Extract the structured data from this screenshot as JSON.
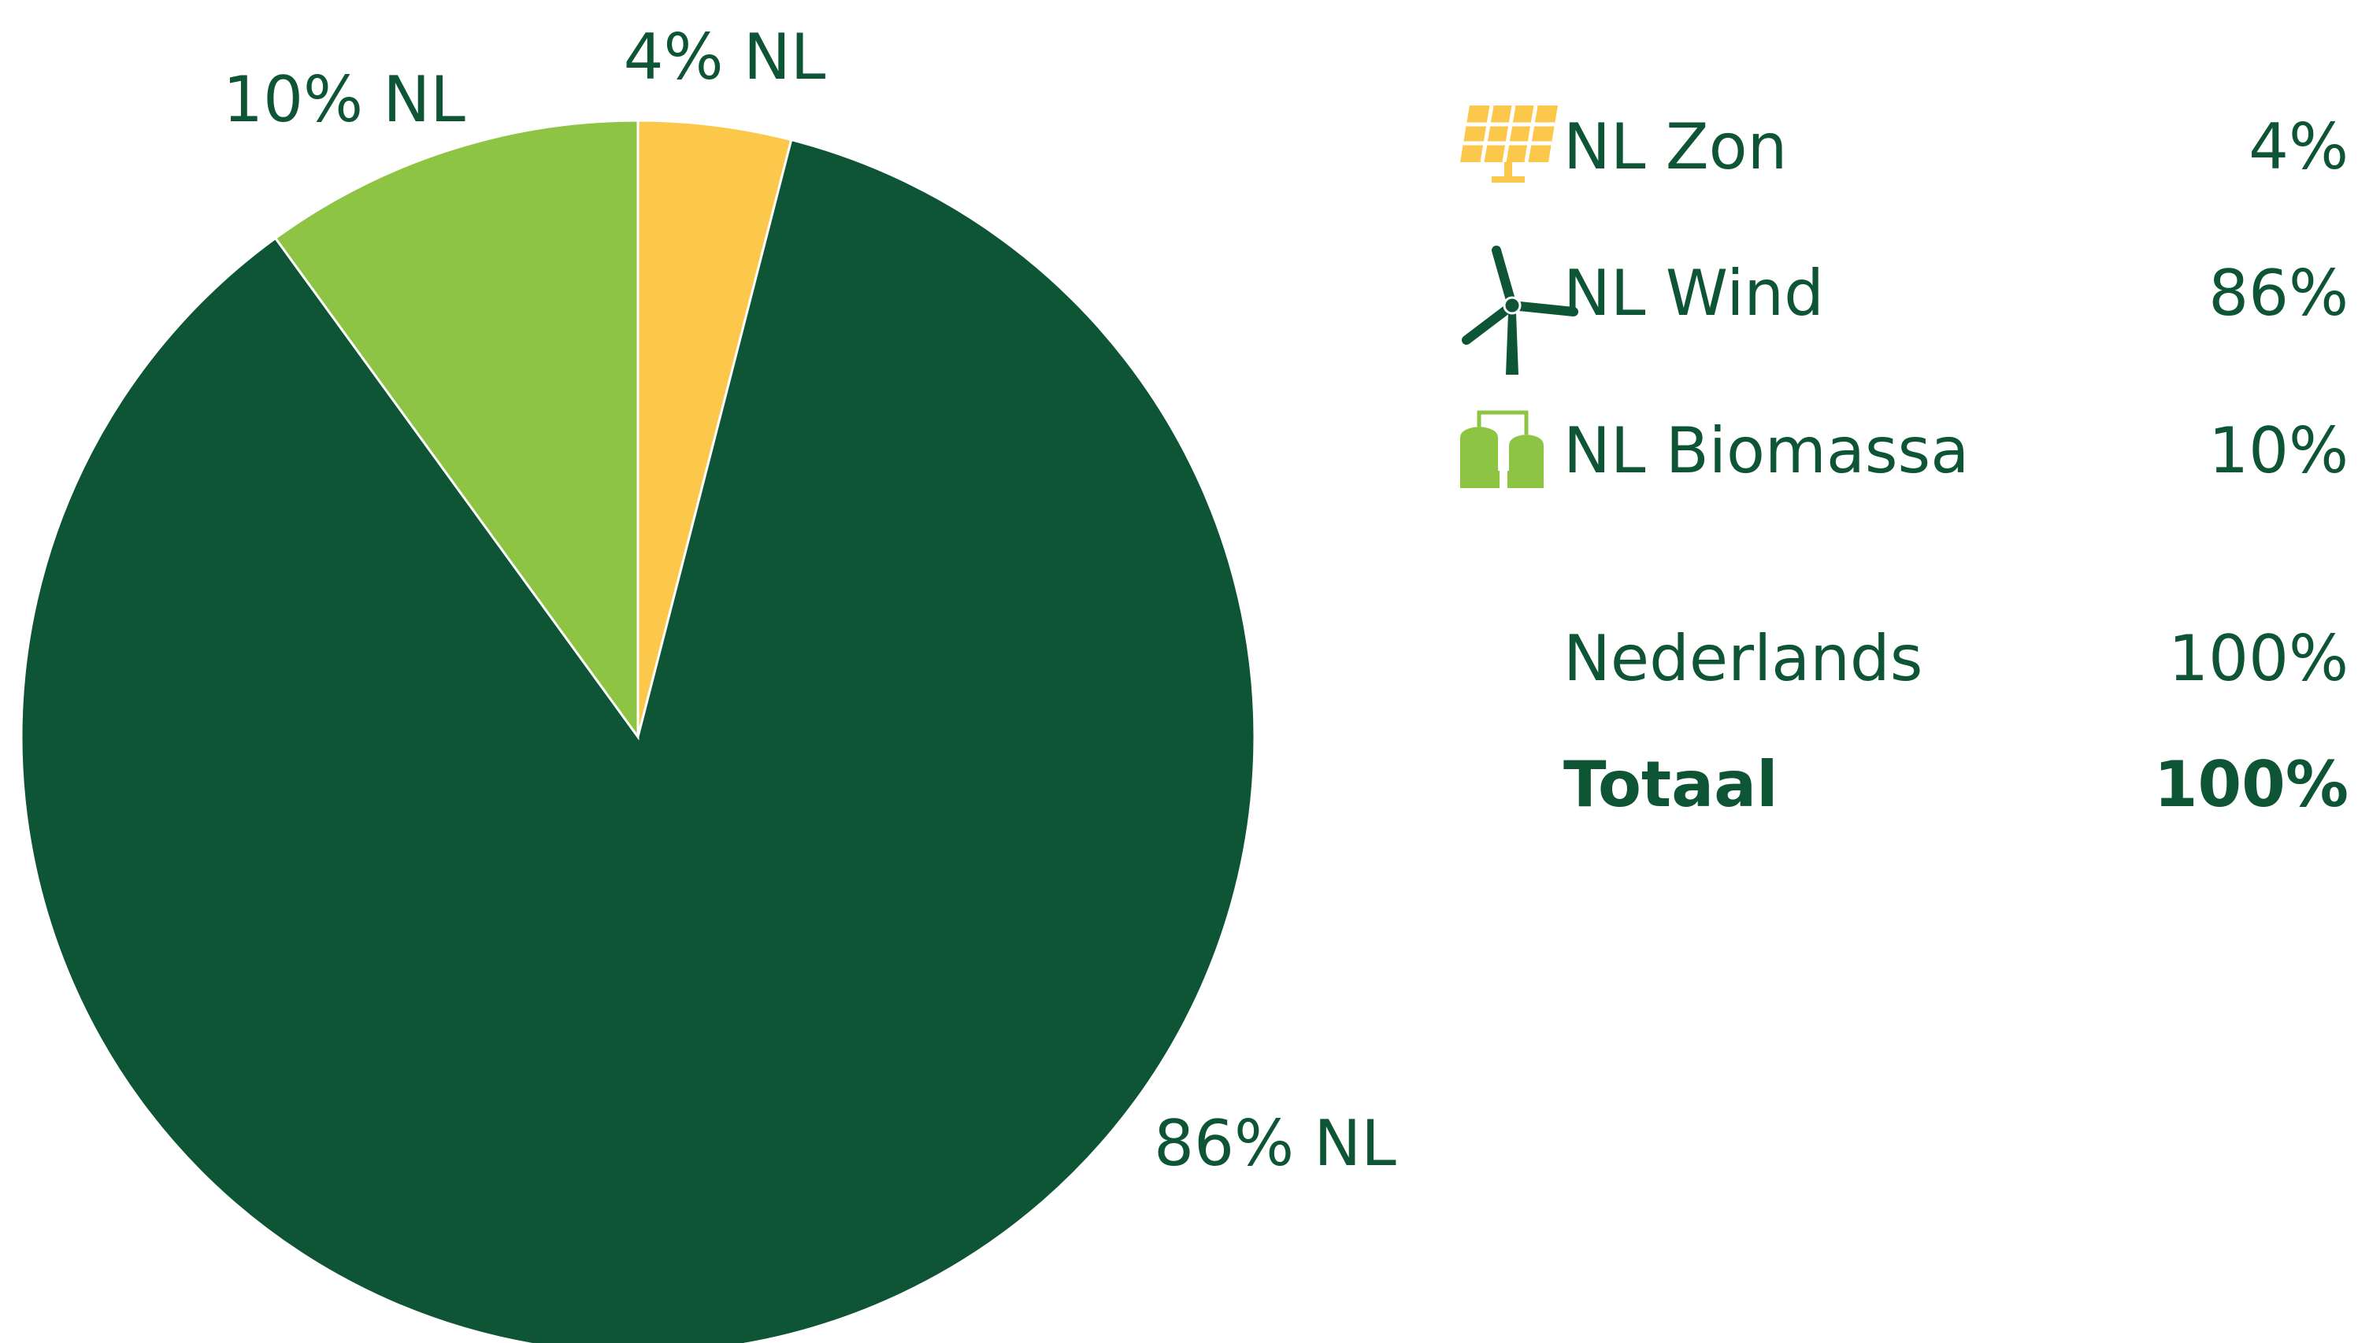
{
  "chart_data": {
    "type": "pie",
    "categories": [
      "NL Zon",
      "NL Wind",
      "NL Biomassa"
    ],
    "values": [
      4,
      86,
      10
    ],
    "value_labels": [
      "4% NL",
      "86% NL",
      "10% NL"
    ],
    "legend_labels": [
      "4%",
      "86%",
      "10%"
    ],
    "colors": [
      "#fcc84c",
      "#0d5535",
      "#8dc443"
    ],
    "totals": [
      {
        "name": "Nederlands",
        "value": "100%"
      },
      {
        "name": "Totaal",
        "value": "100%"
      }
    ]
  }
}
